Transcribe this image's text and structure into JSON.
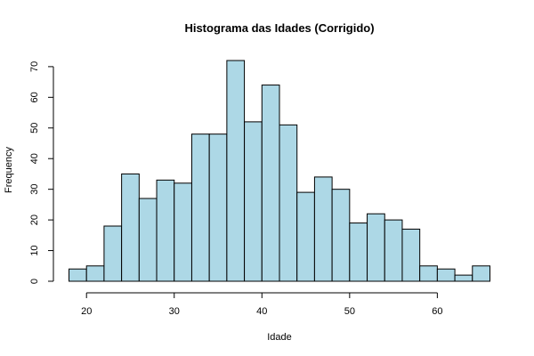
{
  "chart_data": {
    "type": "bar",
    "title": "Histograma das Idades (Corrigido)",
    "xlabel": "Idade",
    "ylabel": "Frequency",
    "bin_width": 2,
    "bin_edges": [
      18,
      20,
      22,
      24,
      26,
      28,
      30,
      32,
      34,
      36,
      38,
      40,
      42,
      44,
      46,
      48,
      50,
      52,
      54,
      56,
      58,
      60,
      62,
      64,
      66
    ],
    "values": [
      4,
      5,
      18,
      35,
      27,
      33,
      32,
      48,
      48,
      72,
      52,
      64,
      51,
      29,
      34,
      30,
      19,
      22,
      20,
      17,
      5,
      4,
      2,
      5
    ],
    "xlim": [
      18,
      66
    ],
    "ylim": [
      0,
      72
    ],
    "x_ticks": [
      20,
      30,
      40,
      50,
      60
    ],
    "y_ticks": [
      0,
      10,
      20,
      30,
      40,
      50,
      60,
      70
    ],
    "bar_color": "#add8e6",
    "grid": false
  }
}
